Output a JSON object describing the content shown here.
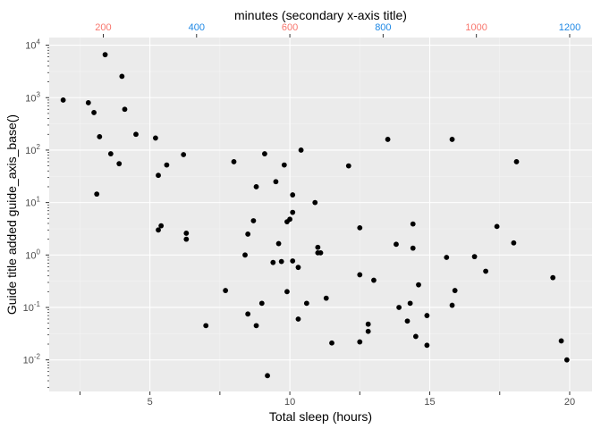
{
  "chart_data": {
    "type": "scatter",
    "xlabel": "Total sleep (hours)",
    "ylabel": "Guide title added guide_axis_base()",
    "secondary_xlabel": "minutes (secondary x-axis title)",
    "x_ticks": [
      5,
      10,
      15,
      20
    ],
    "x_tick_labels": [
      "5",
      "10",
      "15",
      "20"
    ],
    "x_minor_ticks": [
      2.5,
      7.5,
      12.5,
      17.5
    ],
    "xlim": [
      1.4,
      20.8
    ],
    "y_scale": "log10",
    "y_ticks": [
      0.01,
      0.1,
      1,
      10,
      100,
      1000,
      10000
    ],
    "y_tick_labels": [
      {
        "base": "10",
        "exp": "-2"
      },
      {
        "base": "10",
        "exp": "-1"
      },
      {
        "base": "10",
        "exp": "0"
      },
      {
        "base": "10",
        "exp": "1"
      },
      {
        "base": "10",
        "exp": "2"
      },
      {
        "base": "10",
        "exp": "3"
      },
      {
        "base": "10",
        "exp": "4"
      }
    ],
    "ylim": [
      0.0025,
      14000
    ],
    "secondary_x_ticks": [
      {
        "minutes": 200,
        "label": "200",
        "color": "#f8766d"
      },
      {
        "minutes": 400,
        "label": "400",
        "color": "#1e88e5"
      },
      {
        "minutes": 600,
        "label": "600",
        "color": "#f8766d"
      },
      {
        "minutes": 800,
        "label": "800",
        "color": "#1e88e5"
      },
      {
        "minutes": 1000,
        "label": "1000",
        "color": "#f8766d"
      },
      {
        "minutes": 1200,
        "label": "1200",
        "color": "#1e88e5"
      }
    ],
    "grid": true,
    "panel_color": "#ebebeb",
    "point_color": "#000000",
    "points": [
      [
        1.9,
        900
      ],
      [
        2.8,
        800
      ],
      [
        3.0,
        520
      ],
      [
        3.2,
        180
      ],
      [
        3.1,
        14.5
      ],
      [
        3.4,
        6600
      ],
      [
        3.6,
        85
      ],
      [
        3.9,
        55
      ],
      [
        4.0,
        2550
      ],
      [
        4.1,
        600
      ],
      [
        4.5,
        200
      ],
      [
        5.2,
        170
      ],
      [
        5.3,
        33
      ],
      [
        5.3,
        3.0
      ],
      [
        5.4,
        3.6
      ],
      [
        5.6,
        52
      ],
      [
        6.2,
        82
      ],
      [
        6.3,
        2.6
      ],
      [
        6.3,
        2.0
      ],
      [
        7.0,
        0.045
      ],
      [
        7.7,
        0.21
      ],
      [
        8.0,
        60
      ],
      [
        8.4,
        1.0
      ],
      [
        8.5,
        2.5
      ],
      [
        8.5,
        0.075
      ],
      [
        8.7,
        4.5
      ],
      [
        8.8,
        20
      ],
      [
        8.8,
        0.045
      ],
      [
        9.0,
        0.12
      ],
      [
        9.1,
        85
      ],
      [
        9.2,
        0.005
      ],
      [
        9.4,
        0.72
      ],
      [
        9.5,
        25
      ],
      [
        9.6,
        1.65
      ],
      [
        9.7,
        0.75
      ],
      [
        9.8,
        52
      ],
      [
        9.9,
        0.2
      ],
      [
        9.9,
        4.3
      ],
      [
        10.0,
        4.8
      ],
      [
        10.1,
        6.5
      ],
      [
        10.1,
        14
      ],
      [
        10.1,
        0.77
      ],
      [
        10.3,
        0.58
      ],
      [
        10.4,
        100
      ],
      [
        10.3,
        0.06
      ],
      [
        10.6,
        0.12
      ],
      [
        10.9,
        10
      ],
      [
        11.0,
        1.4
      ],
      [
        11.0,
        1.1
      ],
      [
        11.1,
        1.1
      ],
      [
        11.3,
        0.15
      ],
      [
        11.5,
        0.021
      ],
      [
        12.1,
        50
      ],
      [
        12.5,
        3.3
      ],
      [
        12.5,
        0.42
      ],
      [
        12.5,
        0.022
      ],
      [
        12.8,
        0.048
      ],
      [
        12.8,
        0.035
      ],
      [
        13.0,
        0.33
      ],
      [
        13.5,
        160
      ],
      [
        13.8,
        1.6
      ],
      [
        13.9,
        0.1
      ],
      [
        14.2,
        0.055
      ],
      [
        14.3,
        0.12
      ],
      [
        14.4,
        3.9
      ],
      [
        14.4,
        1.35
      ],
      [
        14.5,
        0.028
      ],
      [
        14.6,
        0.27
      ],
      [
        14.9,
        0.07
      ],
      [
        14.9,
        0.019
      ],
      [
        15.6,
        0.9
      ],
      [
        15.8,
        160
      ],
      [
        15.8,
        0.11
      ],
      [
        15.9,
        0.21
      ],
      [
        16.6,
        0.93
      ],
      [
        17.0,
        0.49
      ],
      [
        17.4,
        3.5
      ],
      [
        18.0,
        1.7
      ],
      [
        18.1,
        60
      ],
      [
        19.4,
        0.37
      ],
      [
        19.7,
        0.023
      ],
      [
        19.9,
        0.01
      ]
    ]
  }
}
